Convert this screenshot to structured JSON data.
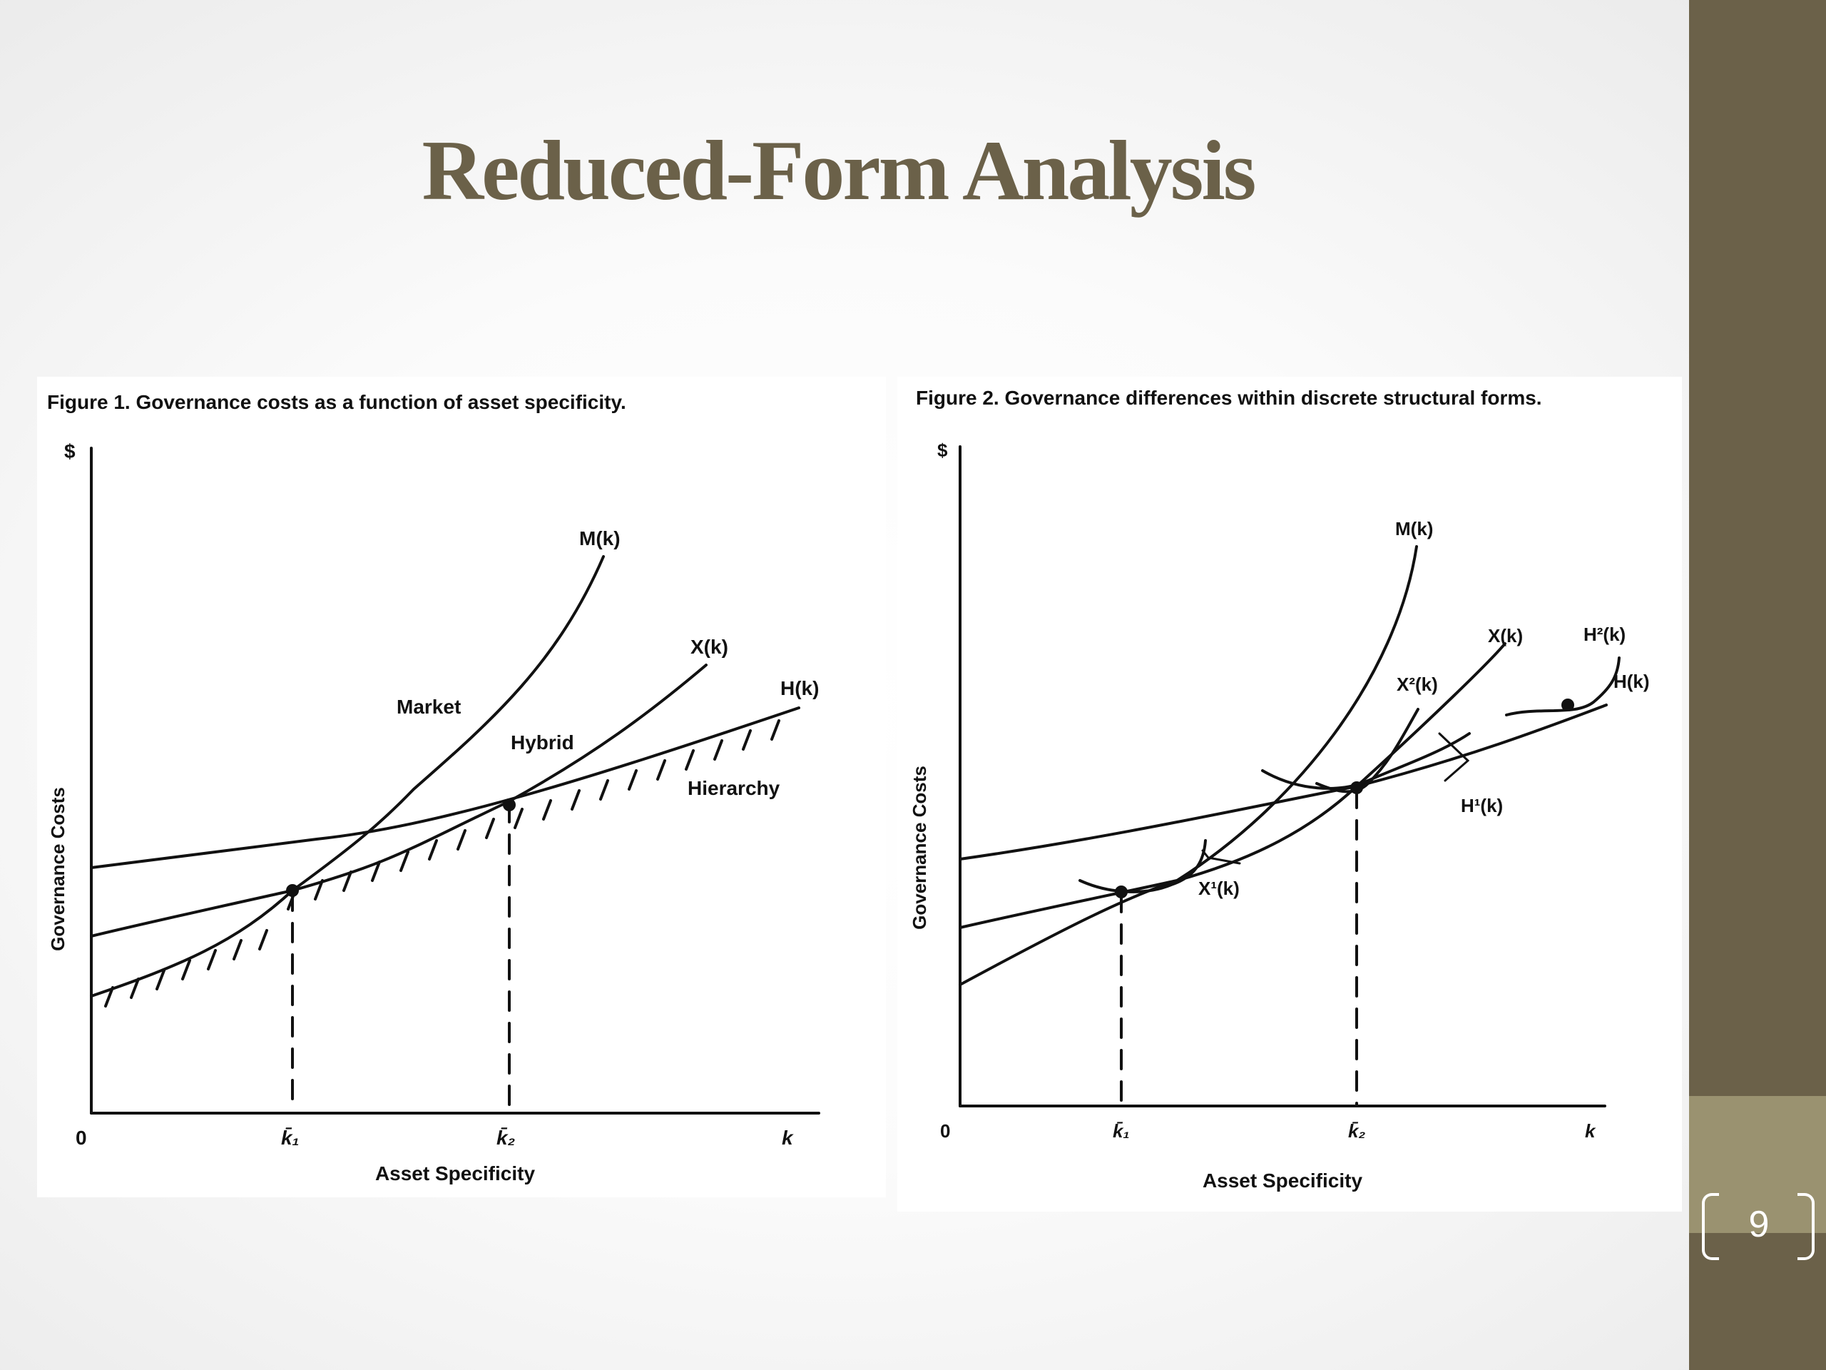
{
  "slide": {
    "title": "Reduced-Form Analysis",
    "page_number": "9",
    "colors": {
      "title": "#6b6149",
      "sidebar": "#6b6149",
      "sidebar_band": "#9a9270"
    }
  },
  "chart_data": [
    {
      "type": "line",
      "caption": "Figure 1.  Governance costs as a function of asset specificity.",
      "ylabel": "Governance Costs",
      "y_unit": "$",
      "xlabel": "Asset Specificity",
      "x_tick_labels": {
        "origin": "0",
        "k1": "k̄₁",
        "k2": "k̄₂",
        "end": "k"
      },
      "series": [
        {
          "name": "M(k)",
          "values": [
            [
              0.0,
              0.16
            ],
            [
              0.27,
              0.32
            ],
            [
              0.45,
              0.5
            ],
            [
              0.56,
              0.65
            ],
            [
              0.65,
              0.84
            ]
          ]
        },
        {
          "name": "X(k)",
          "values": [
            [
              0.0,
              0.26
            ],
            [
              0.27,
              0.32
            ],
            [
              0.43,
              0.46
            ],
            [
              0.54,
              0.55
            ],
            [
              0.66,
              0.65
            ]
          ]
        },
        {
          "name": "H(k)",
          "values": [
            [
              0.0,
              0.36
            ],
            [
              0.27,
              0.41
            ],
            [
              0.43,
              0.46
            ],
            [
              0.62,
              0.51
            ],
            [
              0.78,
              0.56
            ]
          ]
        }
      ],
      "region_labels": [
        "Market",
        "Hybrid",
        "Hierarchy"
      ],
      "points": [
        {
          "x": 0.27,
          "y": 0.32
        },
        {
          "x": 0.43,
          "y": 0.46
        }
      ]
    },
    {
      "type": "line",
      "caption": "Figure 2.  Governance differences within discrete structural forms.",
      "ylabel": "Governance Costs",
      "y_unit": "$",
      "xlabel": "Asset Specificity",
      "x_tick_labels": {
        "origin": "0",
        "k1": "k̄₁",
        "k2": "k̄₂",
        "end": "k"
      },
      "series": [
        {
          "name": "M(k)"
        },
        {
          "name": "X(k)"
        },
        {
          "name": "H(k)"
        },
        {
          "name": "X¹(k)"
        },
        {
          "name": "X²(k)"
        },
        {
          "name": "H¹(k)"
        },
        {
          "name": "H²(k)"
        }
      ],
      "points": [
        {
          "x": 0.27,
          "y": 0.32
        },
        {
          "x": 0.63,
          "y": 0.49
        },
        {
          "x": 0.94,
          "y": 0.6
        }
      ]
    }
  ]
}
